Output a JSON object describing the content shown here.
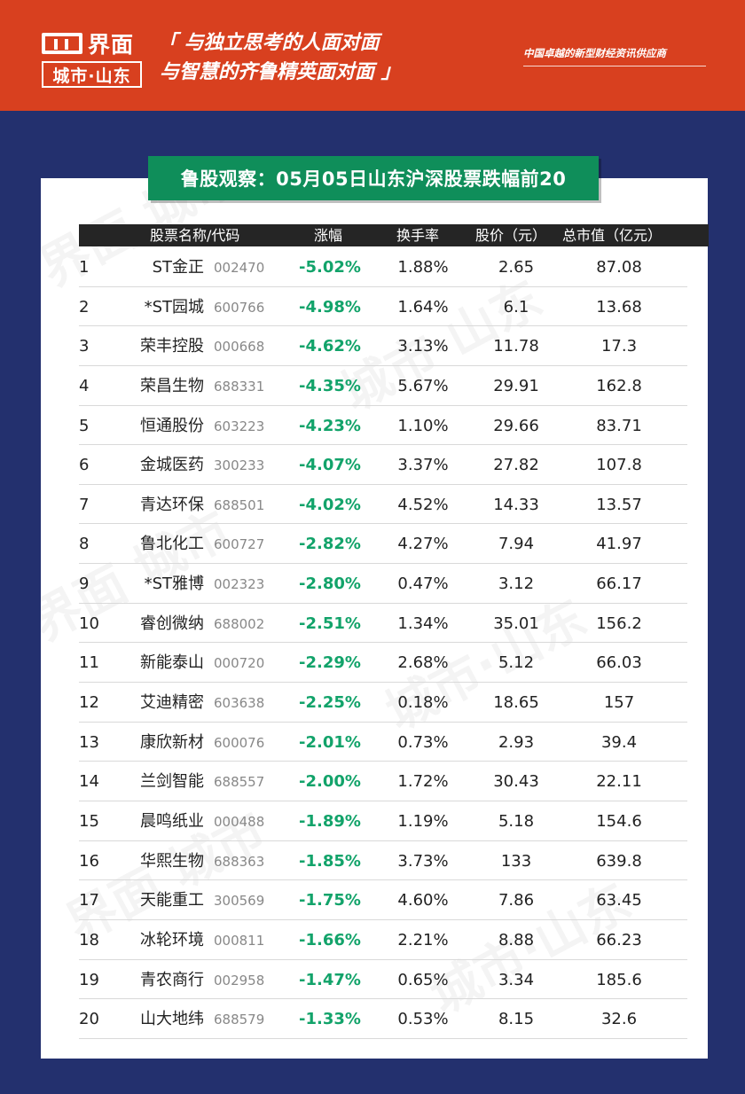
{
  "header": {
    "logo_name": "界面",
    "logo_sub": "城市·山东",
    "slogan_line1": "「 与独立思考的人面对面",
    "slogan_line2": "与智慧的齐鲁精英面对面 」",
    "tagline": "中国卓越的新型财经资讯供应商"
  },
  "title": "鲁股观察：05月05日山东沪深股票跌幅前20",
  "columns": {
    "name_code": "股票名称/代码",
    "change": "涨幅",
    "turnover": "换手率",
    "price": "股价（元）",
    "market_cap": "总市值（亿元）"
  },
  "rows": [
    {
      "rank": "1",
      "name": "ST金正",
      "code": "002470",
      "change": "-5.02%",
      "turnover": "1.88%",
      "price": "2.65",
      "market_cap": "87.08"
    },
    {
      "rank": "2",
      "name": "*ST园城",
      "code": "600766",
      "change": "-4.98%",
      "turnover": "1.64%",
      "price": "6.1",
      "market_cap": "13.68"
    },
    {
      "rank": "3",
      "name": "荣丰控股",
      "code": "000668",
      "change": "-4.62%",
      "turnover": "3.13%",
      "price": "11.78",
      "market_cap": "17.3"
    },
    {
      "rank": "4",
      "name": "荣昌生物",
      "code": "688331",
      "change": "-4.35%",
      "turnover": "5.67%",
      "price": "29.91",
      "market_cap": "162.8"
    },
    {
      "rank": "5",
      "name": "恒通股份",
      "code": "603223",
      "change": "-4.23%",
      "turnover": "1.10%",
      "price": "29.66",
      "market_cap": "83.71"
    },
    {
      "rank": "6",
      "name": "金城医药",
      "code": "300233",
      "change": "-4.07%",
      "turnover": "3.37%",
      "price": "27.82",
      "market_cap": "107.8"
    },
    {
      "rank": "7",
      "name": "青达环保",
      "code": "688501",
      "change": "-4.02%",
      "turnover": "4.52%",
      "price": "14.33",
      "market_cap": "13.57"
    },
    {
      "rank": "8",
      "name": "鲁北化工",
      "code": "600727",
      "change": "-2.82%",
      "turnover": "4.27%",
      "price": "7.94",
      "market_cap": "41.97"
    },
    {
      "rank": "9",
      "name": "*ST雅博",
      "code": "002323",
      "change": "-2.80%",
      "turnover": "0.47%",
      "price": "3.12",
      "market_cap": "66.17"
    },
    {
      "rank": "10",
      "name": "睿创微纳",
      "code": "688002",
      "change": "-2.51%",
      "turnover": "1.34%",
      "price": "35.01",
      "market_cap": "156.2"
    },
    {
      "rank": "11",
      "name": "新能泰山",
      "code": "000720",
      "change": "-2.29%",
      "turnover": "2.68%",
      "price": "5.12",
      "market_cap": "66.03"
    },
    {
      "rank": "12",
      "name": "艾迪精密",
      "code": "603638",
      "change": "-2.25%",
      "turnover": "0.18%",
      "price": "18.65",
      "market_cap": "157"
    },
    {
      "rank": "13",
      "name": "康欣新材",
      "code": "600076",
      "change": "-2.01%",
      "turnover": "0.73%",
      "price": "2.93",
      "market_cap": "39.4"
    },
    {
      "rank": "14",
      "name": "兰剑智能",
      "code": "688557",
      "change": "-2.00%",
      "turnover": "1.72%",
      "price": "30.43",
      "market_cap": "22.11"
    },
    {
      "rank": "15",
      "name": "晨鸣纸业",
      "code": "000488",
      "change": "-1.89%",
      "turnover": "1.19%",
      "price": "5.18",
      "market_cap": "154.6"
    },
    {
      "rank": "16",
      "name": "华熙生物",
      "code": "688363",
      "change": "-1.85%",
      "turnover": "3.73%",
      "price": "133",
      "market_cap": "639.8"
    },
    {
      "rank": "17",
      "name": "天能重工",
      "code": "300569",
      "change": "-1.75%",
      "turnover": "4.60%",
      "price": "7.86",
      "market_cap": "63.45"
    },
    {
      "rank": "18",
      "name": "冰轮环境",
      "code": "000811",
      "change": "-1.66%",
      "turnover": "2.21%",
      "price": "8.88",
      "market_cap": "66.23"
    },
    {
      "rank": "19",
      "name": "青农商行",
      "code": "002958",
      "change": "-1.47%",
      "turnover": "0.65%",
      "price": "3.34",
      "market_cap": "185.6"
    },
    {
      "rank": "20",
      "name": "山大地纬",
      "code": "688579",
      "change": "-1.33%",
      "turnover": "0.53%",
      "price": "8.15",
      "market_cap": "32.6"
    }
  ],
  "colors": {
    "header_bg": "#d8401f",
    "page_bg": "#23306e",
    "banner_bg": "#0f8e5a",
    "change_text": "#12a36a",
    "table_header_bg": "#252525"
  }
}
